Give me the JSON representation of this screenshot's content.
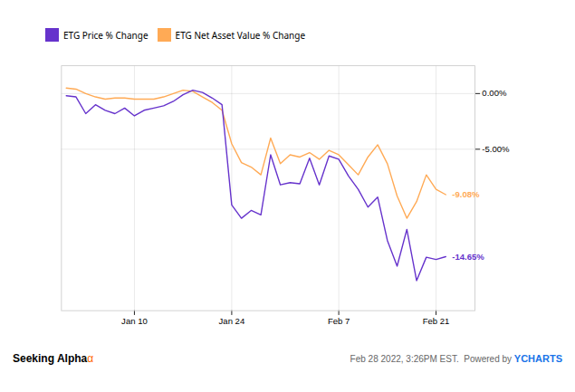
{
  "chart_data": {
    "type": "line",
    "x": [
      0,
      1,
      2,
      3,
      4,
      5,
      6,
      7,
      8,
      9,
      10,
      11,
      12,
      13,
      14,
      15,
      16,
      17,
      18,
      19,
      20,
      21,
      22,
      23,
      24,
      25,
      26,
      27,
      28,
      29,
      30,
      31,
      32,
      33,
      34,
      35,
      36,
      37,
      38,
      39
    ],
    "series": [
      {
        "name": "ETG Price % Change",
        "color": "#6633cc",
        "values": [
          -0.2,
          -0.3,
          -1.8,
          -1.0,
          -1.5,
          -1.8,
          -1.3,
          -2.0,
          -1.5,
          -1.3,
          -1.1,
          -0.7,
          -0.1,
          0.3,
          0.1,
          -0.4,
          -1.0,
          -10.0,
          -11.2,
          -10.5,
          -10.9,
          -5.5,
          -8.2,
          -8.0,
          -8.1,
          -5.8,
          -8.2,
          -5.6,
          -5.9,
          -7.4,
          -8.6,
          -10.2,
          -9.3,
          -13.2,
          -15.5,
          -12.2,
          -16.8,
          -14.7,
          -14.9,
          -14.65
        ]
      },
      {
        "name": "ETG Net Asset Value % Change",
        "color": "#ffaa55",
        "values": [
          0.5,
          0.4,
          0.0,
          -0.3,
          -0.5,
          -0.4,
          -0.4,
          -0.5,
          -0.5,
          -0.5,
          -0.3,
          0.0,
          0.3,
          0.2,
          -0.3,
          -0.8,
          -1.5,
          -4.5,
          -6.2,
          -6.6,
          -7.3,
          -4.0,
          -6.3,
          -5.5,
          -5.7,
          -5.3,
          -5.9,
          -5.1,
          -5.5,
          -6.4,
          -7.3,
          -5.7,
          -4.6,
          -6.3,
          -9.2,
          -11.2,
          -9.7,
          -7.3,
          -8.6,
          -9.08
        ]
      }
    ],
    "xlim": [
      -0.5,
      42
    ],
    "xticks": [
      {
        "value": 7,
        "label": "Jan 10"
      },
      {
        "value": 17,
        "label": "Jan 24"
      },
      {
        "value": 28,
        "label": "Feb 7"
      },
      {
        "value": 38,
        "label": "Feb 21"
      }
    ],
    "ylim": [
      -19.5,
      2.5
    ],
    "yticks": [
      {
        "value": 0.0,
        "label": "0.00%"
      },
      {
        "value": -5.0,
        "label": "-5.00%"
      }
    ],
    "grid": true,
    "legend": "upper left",
    "annotations": [
      {
        "text": "-9.08%",
        "x": 39,
        "y": -9.08,
        "color": "#ffaa55"
      },
      {
        "text": "-14.65%",
        "x": 39,
        "y": -14.65,
        "color": "#6633cc"
      },
      {
        "text": "Seeking Alpha"
      },
      {
        "text": "α",
        "color": "#ff6600"
      },
      {
        "text": "Feb 28 2022, 3:26PM EST.  Powered by "
      },
      {
        "text": "YCHARTS",
        "color": "#1a73e8"
      }
    ]
  }
}
